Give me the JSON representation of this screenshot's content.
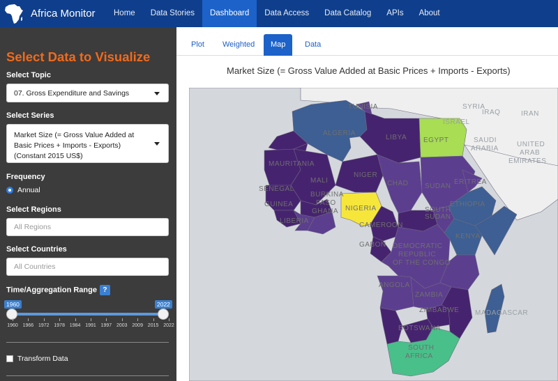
{
  "navbar": {
    "brand": "Africa Monitor",
    "items": [
      "Home",
      "Data Stories",
      "Dashboard",
      "Data Access",
      "Data Catalog",
      "APIs",
      "About"
    ],
    "active": "Dashboard"
  },
  "sidebar": {
    "title": "Select Data to Visualize",
    "topic_label": "Select Topic",
    "topic_value": "07. Gross Expenditure and Savings",
    "series_label": "Select Series",
    "series_value": "Market Size (= Gross Value Added at Basic Prices + Imports - Exports) (Constant 2015 US$)",
    "frequency_label": "Frequency",
    "frequency_value": "Annual",
    "regions_label": "Select Regions",
    "regions_placeholder": "All Regions",
    "countries_label": "Select Countries",
    "countries_placeholder": "All Countries",
    "range_label": "Time/Aggregation Range",
    "range_help": "?",
    "range_min": "1960",
    "range_max": "2022",
    "ticks": [
      "1960",
      "1966",
      "1972",
      "1978",
      "1984",
      "1991",
      "1997",
      "2003",
      "2009",
      "2015",
      "2022"
    ],
    "transform_label": "Transform Data"
  },
  "tabs": [
    "Plot",
    "Weighted",
    "Map",
    "Data"
  ],
  "active_tab": "Map",
  "plot_title": "Market Size (= Gross Value Added at Basic Prices + Imports - Exports)",
  "map": {
    "labels": {
      "tunisia": "TUNISIA",
      "algeria": "ALGERIA",
      "libya": "LIBYA",
      "egypt": "EGYPT",
      "syria": "SYRIA",
      "iraq": "IRAQ",
      "iran": "IRAN",
      "israel": "ISRAEL",
      "saudi1": "SAUDI",
      "saudi2": "ARABIA",
      "uae1": "UNITED",
      "uae2": "ARAB",
      "uae3": "EMIRATES",
      "mauritania": "MAURITANIA",
      "mali": "MALI",
      "niger": "NIGER",
      "chad": "CHAD",
      "sudan": "SUDAN",
      "eritrea": "ERITREA",
      "senegal": "SENEGAL",
      "burkina1": "BURKINA",
      "burkina2": "FASO",
      "guinea": "GUINEA",
      "liberia": "LIBERIA",
      "ghana": "GHANA",
      "nigeria": "NIGERIA",
      "ethiopia": "ETHIOPIA",
      "ssudan1": "SOUTH",
      "ssudan2": "SUDAN",
      "cameroon": "CAMEROON",
      "gabon": "GABON",
      "kenya": "KENYA",
      "drc1": "DEMOCRATIC",
      "drc2": "REPUBLIC",
      "drc3": "OF THE CONGO",
      "angola": "ANGOLA",
      "zambia": "ZAMBIA",
      "zimbabwe": "ZIMBABWE",
      "madagascar": "MADAGASCAR",
      "botswana": "BOTSWANA",
      "safrica1": "SOUTH",
      "safrica2": "AFRICA"
    },
    "colors": {
      "ocean": "#d4d8dc",
      "land_other": "#efefef",
      "low": "#46236f",
      "mid_low": "#5c3e8f",
      "mid": "#3d5f93",
      "mid_high": "#3a8aa0",
      "high_green": "#49bf8a",
      "lime": "#a8dd54",
      "top": "#f6e63a"
    }
  }
}
